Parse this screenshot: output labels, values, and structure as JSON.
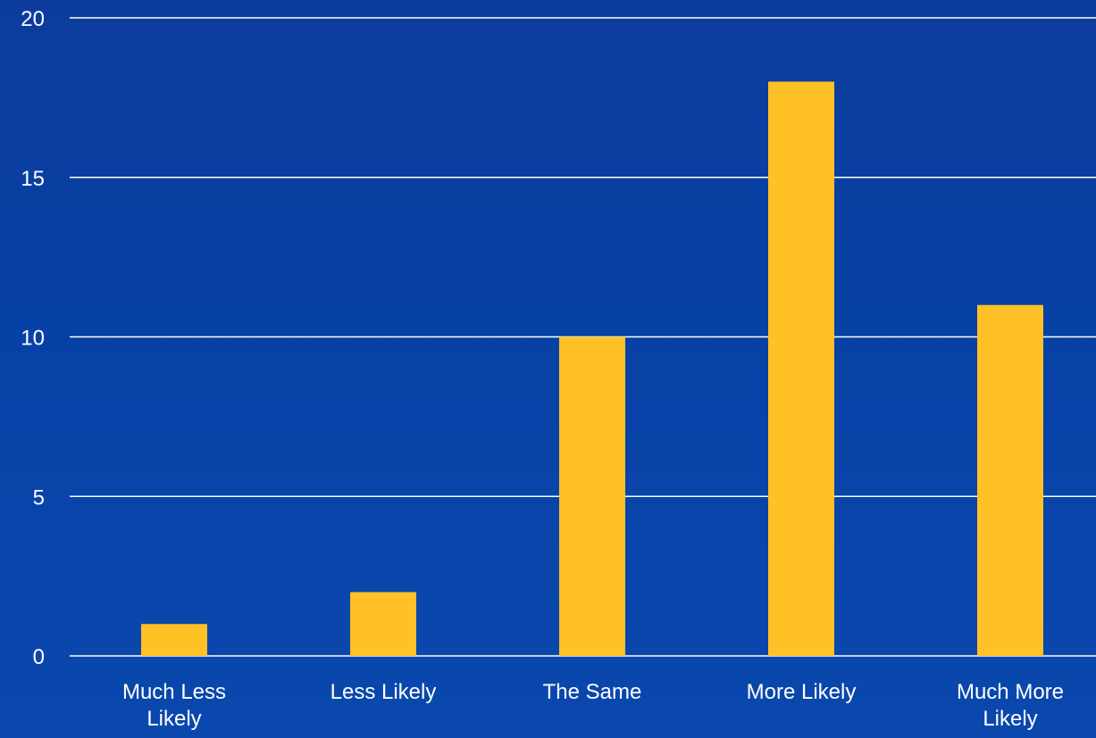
{
  "chart_data": {
    "type": "bar",
    "categories": [
      [
        "Much Less",
        "Likely"
      ],
      [
        "Less Likely"
      ],
      [
        "The Same"
      ],
      [
        "More Likely"
      ],
      [
        "Much More",
        "Likely"
      ]
    ],
    "values": [
      1,
      2,
      10,
      18,
      11
    ],
    "title": "",
    "xlabel": "",
    "ylabel": "",
    "ylim": [
      0,
      20
    ],
    "yticks": [
      "0",
      "5",
      "10",
      "15",
      "20"
    ],
    "grid": true,
    "legend": "none",
    "colors": {
      "bar": "#ffc125",
      "grid": "#ffffff",
      "text": "#ffffff"
    }
  }
}
